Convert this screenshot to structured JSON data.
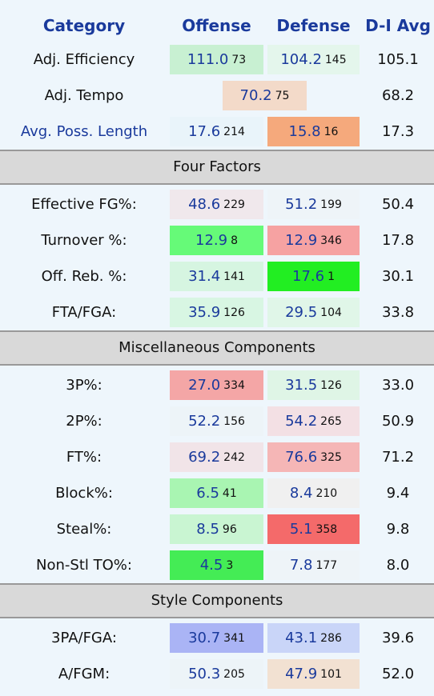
{
  "header": {
    "columns": [
      "Category",
      "Offense",
      "Defense",
      "D-I Avg"
    ]
  },
  "sections": [
    {
      "rows": [
        {
          "category": "Adj. Efficiency",
          "offense": {
            "value": "111.0",
            "rank": "73",
            "color": "#c8f0d2"
          },
          "defense": {
            "value": "104.2",
            "rank": "145",
            "color": "#e4f6ec"
          },
          "avg": "105.1"
        },
        {
          "category": "Adj. Tempo",
          "combined": {
            "value": "70.2",
            "rank": "75",
            "color": "#f3dac9"
          },
          "avg": "68.2"
        },
        {
          "category": "Avg. Poss. Length",
          "category_color": "blue",
          "offense": {
            "value": "17.6",
            "rank": "214",
            "color": "#e9f4fa"
          },
          "defense": {
            "value": "15.8",
            "rank": "16",
            "color": "#f5a97c"
          },
          "avg": "17.3"
        }
      ]
    },
    {
      "title": "Four Factors",
      "rows": [
        {
          "category": "Effective FG%:",
          "offense": {
            "value": "48.6",
            "rank": "229",
            "color": "#f0e8ec"
          },
          "defense": {
            "value": "51.2",
            "rank": "199",
            "color": "#eef4f8"
          },
          "avg": "50.4"
        },
        {
          "category": "Turnover %:",
          "offense": {
            "value": "12.9",
            "rank": "8",
            "color": "#66fa78"
          },
          "defense": {
            "value": "12.9",
            "rank": "346",
            "color": "#f6a2a2"
          },
          "avg": "17.8"
        },
        {
          "category": "Off. Reb. %:",
          "offense": {
            "value": "31.4",
            "rank": "141",
            "color": "#d6f5e1"
          },
          "defense": {
            "value": "17.6",
            "rank": "1",
            "color": "#22ee22"
          },
          "avg": "30.1"
        },
        {
          "category": "FTA/FGA:",
          "offense": {
            "value": "35.9",
            "rank": "126",
            "color": "#d8f6e3"
          },
          "defense": {
            "value": "29.5",
            "rank": "104",
            "color": "#e0f6e8"
          },
          "avg": "33.8"
        }
      ]
    },
    {
      "title": "Miscellaneous Components",
      "rows": [
        {
          "category": "3P%:",
          "offense": {
            "value": "27.0",
            "rank": "334",
            "color": "#f4a6a6"
          },
          "defense": {
            "value": "31.5",
            "rank": "126",
            "color": "#dff5e6"
          },
          "avg": "33.0"
        },
        {
          "category": "2P%:",
          "offense": {
            "value": "52.2",
            "rank": "156",
            "color": "#edf4f8"
          },
          "defense": {
            "value": "54.2",
            "rank": "265",
            "color": "#f3e0e4"
          },
          "avg": "50.9"
        },
        {
          "category": "FT%:",
          "offense": {
            "value": "69.2",
            "rank": "242",
            "color": "#f1e4e8"
          },
          "defense": {
            "value": "76.6",
            "rank": "325",
            "color": "#f5b6b6"
          },
          "avg": "71.2"
        },
        {
          "category": "Block%:",
          "offense": {
            "value": "6.5",
            "rank": "41",
            "color": "#a9f5b2"
          },
          "defense": {
            "value": "8.4",
            "rank": "210",
            "color": "#f0f0f0"
          },
          "avg": "9.4"
        },
        {
          "category": "Steal%:",
          "offense": {
            "value": "8.5",
            "rank": "96",
            "color": "#c9f5d2"
          },
          "defense": {
            "value": "5.1",
            "rank": "358",
            "color": "#f46a6a"
          },
          "avg": "9.8"
        },
        {
          "category": "Non-Stl TO%:",
          "offense": {
            "value": "4.5",
            "rank": "3",
            "color": "#44ec55"
          },
          "defense": {
            "value": "7.8",
            "rank": "177",
            "color": "#eef4f8"
          },
          "avg": "8.0"
        }
      ]
    },
    {
      "title": "Style Components",
      "rows": [
        {
          "category": "3PA/FGA:",
          "offense": {
            "value": "30.7",
            "rank": "341",
            "color": "#aab4f5"
          },
          "defense": {
            "value": "43.1",
            "rank": "286",
            "color": "#c9d5f8"
          },
          "avg": "39.6"
        },
        {
          "category": "A/FGM:",
          "offense": {
            "value": "50.3",
            "rank": "205",
            "color": "#edf4f8"
          },
          "defense": {
            "value": "47.9",
            "rank": "101",
            "color": "#f2e1d2"
          },
          "avg": "52.0"
        }
      ]
    }
  ]
}
